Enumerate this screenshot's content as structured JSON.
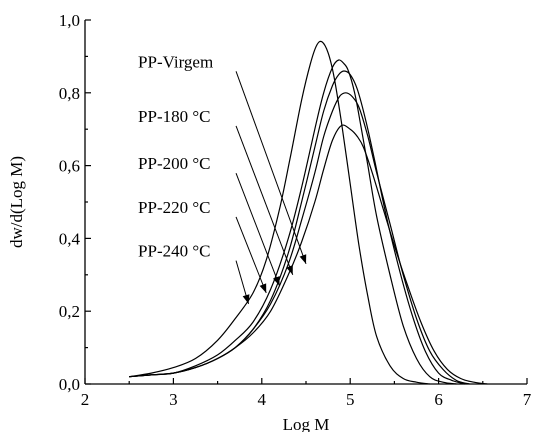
{
  "chart_data": {
    "type": "line",
    "xlabel": "Log M",
    "ylabel": "dw/d(Log M)",
    "xlim": [
      2,
      7
    ],
    "ylim": [
      0.0,
      1.0
    ],
    "xticks": [
      2,
      3,
      4,
      5,
      6,
      7
    ],
    "xtick_labels": [
      "2",
      "3",
      "4",
      "5",
      "6",
      "7"
    ],
    "yticks": [
      0.0,
      0.2,
      0.4,
      0.6,
      0.8,
      1.0
    ],
    "ytick_labels": [
      "0,0",
      "0,2",
      "0,4",
      "0,6",
      "0,8",
      "1,0"
    ],
    "grid": false,
    "series": [
      {
        "name": "PP-Virgem",
        "label_pos": [
          2.6,
          0.87
        ],
        "arrow_to": [
          4.5,
          0.33
        ],
        "x": [
          2.5,
          2.75,
          3.0,
          3.25,
          3.5,
          3.7,
          3.9,
          4.1,
          4.3,
          4.45,
          4.6,
          4.7,
          4.8,
          4.9,
          5.0,
          5.08,
          5.15,
          5.25,
          5.35,
          5.5,
          5.65,
          5.8,
          5.95,
          6.1,
          6.25,
          6.4,
          6.55
        ],
        "y": [
          0.02,
          0.025,
          0.03,
          0.045,
          0.07,
          0.1,
          0.14,
          0.2,
          0.3,
          0.39,
          0.5,
          0.59,
          0.67,
          0.71,
          0.7,
          0.68,
          0.65,
          0.58,
          0.5,
          0.38,
          0.27,
          0.17,
          0.09,
          0.04,
          0.015,
          0.005,
          0.0
        ]
      },
      {
        "name": "PP-180 °C",
        "label_pos": [
          2.6,
          0.72
        ],
        "arrow_to": [
          4.35,
          0.3
        ],
        "x": [
          2.5,
          2.75,
          3.0,
          3.25,
          3.5,
          3.7,
          3.9,
          4.1,
          4.3,
          4.45,
          4.6,
          4.7,
          4.8,
          4.88,
          4.95,
          5.02,
          5.1,
          5.2,
          5.3,
          5.45,
          5.6,
          5.75,
          5.9,
          6.05,
          6.2,
          6.35
        ],
        "y": [
          0.02,
          0.025,
          0.03,
          0.045,
          0.07,
          0.1,
          0.15,
          0.22,
          0.33,
          0.45,
          0.58,
          0.68,
          0.75,
          0.79,
          0.8,
          0.79,
          0.76,
          0.68,
          0.58,
          0.44,
          0.3,
          0.18,
          0.09,
          0.04,
          0.01,
          0.0
        ]
      },
      {
        "name": "PP-200 °C",
        "label_pos": [
          2.6,
          0.59
        ],
        "arrow_to": [
          4.2,
          0.27
        ],
        "x": [
          2.5,
          2.75,
          3.0,
          3.25,
          3.5,
          3.7,
          3.9,
          4.1,
          4.3,
          4.45,
          4.6,
          4.7,
          4.8,
          4.87,
          4.93,
          5.0,
          5.08,
          5.18,
          5.28,
          5.4,
          5.55,
          5.7,
          5.85,
          6.0,
          6.15,
          6.3
        ],
        "y": [
          0.02,
          0.025,
          0.03,
          0.045,
          0.07,
          0.1,
          0.15,
          0.23,
          0.36,
          0.5,
          0.65,
          0.75,
          0.82,
          0.85,
          0.86,
          0.85,
          0.81,
          0.72,
          0.61,
          0.47,
          0.32,
          0.19,
          0.09,
          0.03,
          0.01,
          0.0
        ]
      },
      {
        "name": "PP-220 °C",
        "label_pos": [
          2.6,
          0.47
        ],
        "arrow_to": [
          4.05,
          0.25
        ],
        "x": [
          2.5,
          2.75,
          3.0,
          3.25,
          3.5,
          3.7,
          3.9,
          4.1,
          4.3,
          4.45,
          4.6,
          4.7,
          4.8,
          4.87,
          4.93,
          4.98,
          5.05,
          5.12,
          5.2,
          5.3,
          5.45,
          5.6,
          5.75,
          5.9,
          6.05,
          6.2
        ],
        "y": [
          0.02,
          0.025,
          0.03,
          0.05,
          0.08,
          0.12,
          0.17,
          0.26,
          0.4,
          0.54,
          0.7,
          0.8,
          0.87,
          0.89,
          0.88,
          0.86,
          0.8,
          0.71,
          0.6,
          0.46,
          0.3,
          0.16,
          0.07,
          0.02,
          0.005,
          0.0
        ]
      },
      {
        "name": "PP-240 °C",
        "label_pos": [
          2.6,
          0.35
        ],
        "arrow_to": [
          3.85,
          0.22
        ],
        "x": [
          2.5,
          2.75,
          3.0,
          3.25,
          3.5,
          3.7,
          3.9,
          4.05,
          4.2,
          4.32,
          4.45,
          4.55,
          4.62,
          4.68,
          4.75,
          4.82,
          4.9,
          5.0,
          5.1,
          5.2,
          5.3,
          5.45,
          5.6,
          5.75,
          5.9
        ],
        "y": [
          0.02,
          0.03,
          0.045,
          0.07,
          0.12,
          0.18,
          0.25,
          0.34,
          0.48,
          0.62,
          0.78,
          0.88,
          0.93,
          0.94,
          0.91,
          0.84,
          0.72,
          0.55,
          0.38,
          0.24,
          0.13,
          0.05,
          0.015,
          0.005,
          0.0
        ]
      }
    ]
  }
}
